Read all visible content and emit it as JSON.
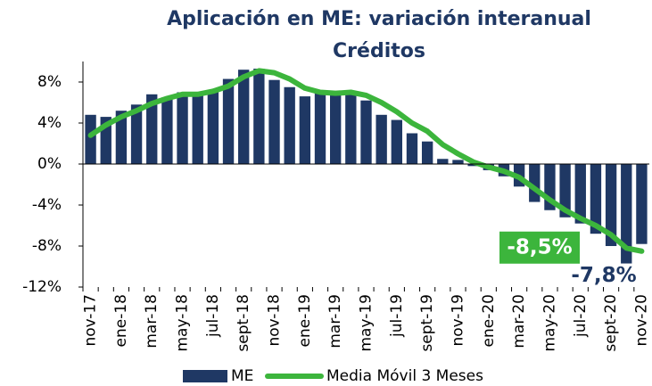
{
  "chart_data": {
    "type": "bar_line",
    "title": "Aplicación en ME: variación interanual",
    "subtitle": "Créditos",
    "categories": [
      "nov-17",
      null,
      "ene-18",
      null,
      "mar-18",
      null,
      "may-18",
      null,
      "jul-18",
      null,
      "sept-18",
      null,
      "nov-18",
      null,
      "ene-19",
      null,
      "mar-19",
      null,
      "may-19",
      null,
      "jul-19",
      null,
      "sept-19",
      null,
      "nov-19",
      null,
      "ene-20",
      null,
      "mar-20",
      null,
      "may-20",
      null,
      "jul-20",
      null,
      "sept-20",
      null,
      "nov-20"
    ],
    "series": [
      {
        "name": "ME",
        "type": "bar",
        "color": "#1f3864",
        "values": [
          4.8,
          4.6,
          5.2,
          5.8,
          6.8,
          6.5,
          7.0,
          6.8,
          7.0,
          8.3,
          9.2,
          9.3,
          8.2,
          7.5,
          6.6,
          6.9,
          6.7,
          7.0,
          6.2,
          4.8,
          4.3,
          3.0,
          2.2,
          0.5,
          0.4,
          -0.2,
          -0.6,
          -1.2,
          -2.2,
          -3.7,
          -4.5,
          -5.2,
          -5.8,
          -6.8,
          -8.0,
          -9.7,
          -7.8
        ],
        "value_labels": [
          null,
          null,
          null,
          null,
          null,
          null,
          null,
          null,
          null,
          null,
          null,
          null,
          null,
          null,
          null,
          null,
          null,
          null,
          null,
          null,
          null,
          null,
          null,
          null,
          null,
          null,
          null,
          null,
          null,
          null,
          null,
          null,
          null,
          null,
          null,
          null,
          "-7,8%"
        ]
      },
      {
        "name": "Media Móvil 3 Meses",
        "type": "line",
        "color": "#3cb53c",
        "values": [
          2.8,
          3.8,
          4.6,
          5.2,
          5.9,
          6.4,
          6.8,
          6.8,
          7.1,
          7.6,
          8.5,
          9.1,
          8.9,
          8.3,
          7.4,
          7.0,
          6.9,
          7.0,
          6.7,
          6.0,
          5.1,
          4.0,
          3.2,
          1.9,
          1.0,
          0.2,
          -0.3,
          -0.7,
          -1.3,
          -2.4,
          -3.5,
          -4.5,
          -5.3,
          -6.0,
          -6.9,
          -8.2,
          -8.5
        ],
        "value_labels": [
          null,
          null,
          null,
          null,
          null,
          null,
          null,
          null,
          null,
          null,
          null,
          null,
          null,
          null,
          null,
          null,
          null,
          null,
          null,
          null,
          null,
          null,
          null,
          null,
          null,
          null,
          null,
          null,
          null,
          null,
          null,
          null,
          null,
          null,
          null,
          null,
          "-8,5%"
        ]
      }
    ],
    "ylim": [
      -12,
      10
    ],
    "yticks": [
      {
        "value": -12,
        "label": "-12%"
      },
      {
        "value": -8,
        "label": "-8%"
      },
      {
        "value": -4,
        "label": "-4%"
      },
      {
        "value": 0,
        "label": "0%"
      },
      {
        "value": 4,
        "label": "4%"
      },
      {
        "value": 8,
        "label": "8%"
      }
    ],
    "legend": "bottom"
  }
}
